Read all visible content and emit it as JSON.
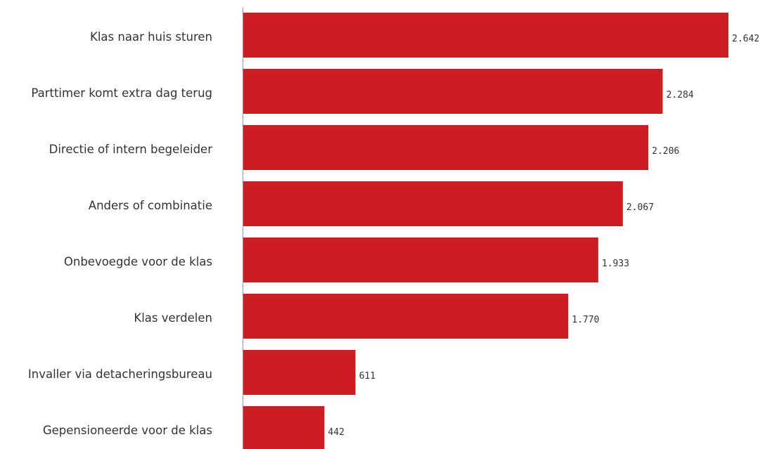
{
  "chart_data": {
    "type": "bar",
    "orientation": "horizontal",
    "categories": [
      "Klas naar huis sturen",
      "Parttimer komt extra dag terug",
      "Directie of intern begeleider",
      "Anders of combinatie",
      "Onbevoegde voor de klas",
      "Klas verdelen",
      "Invaller via detacheringsbureau",
      "Gepensioneerde voor de klas"
    ],
    "values": [
      2642,
      2284,
      2206,
      2067,
      1933,
      1770,
      611,
      442
    ],
    "value_labels": [
      "2.642",
      "2.284",
      "2.206",
      "2.067",
      "1.933",
      "1.770",
      "611",
      "442"
    ],
    "title": "",
    "xlabel": "",
    "ylabel": "",
    "xlim": [
      0,
      2642
    ],
    "grid": false,
    "legend": "none",
    "bar_color": "#cc1c24",
    "axis_color": "#999999",
    "text_color": "#333333"
  }
}
